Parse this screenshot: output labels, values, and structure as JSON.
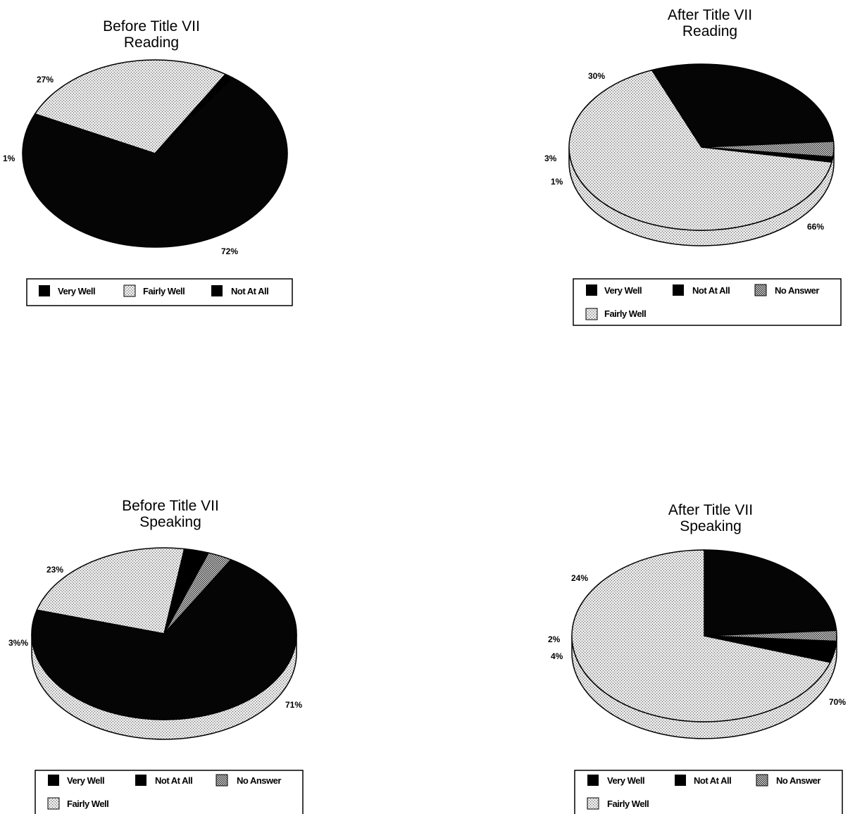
{
  "colors": {
    "very_well": "#000000",
    "fairly_well": "#cfcfcf",
    "not_at_all": "#050505",
    "no_answer": "#bdbdbd",
    "edge": "#000000"
  },
  "chart_data": [
    {
      "type": "pie",
      "title": "Before Title VII",
      "subtitle": "Reading",
      "slices": [
        {
          "label": "Fairly Well",
          "value": 27,
          "text": "27%"
        },
        {
          "label": "Very Well",
          "value": 1,
          "text": "1%"
        },
        {
          "label": "Not At All",
          "value": 72,
          "text": "72%"
        }
      ],
      "legend": [
        "Very Well",
        "Fairly Well",
        "Not At All"
      ]
    },
    {
      "type": "pie",
      "title": "After Title VII",
      "subtitle": "Reading",
      "slices": [
        {
          "label": "Not At All",
          "value": 30,
          "text": "30%"
        },
        {
          "label": "No Answer",
          "value": 3,
          "text": "3%"
        },
        {
          "label": "Very Well",
          "value": 1,
          "text": "1%"
        },
        {
          "label": "Fairly Well",
          "value": 66,
          "text": "66%"
        }
      ],
      "legend": [
        "Very Well",
        "Not At All",
        "No Answer",
        "Fairly Well"
      ]
    },
    {
      "type": "pie",
      "title": "Before Title VII",
      "subtitle": "Speaking",
      "slices": [
        {
          "label": "Fairly Well",
          "value": 23,
          "text": "23%"
        },
        {
          "label": "Very Well",
          "value": 3,
          "text": ""
        },
        {
          "label": "No Answer",
          "value": 3,
          "text": "3%%"
        },
        {
          "label": "Not At All",
          "value": 71,
          "text": "71%"
        }
      ],
      "legend": [
        "Very Well",
        "Not At All",
        "No Answer",
        "Fairly Well"
      ]
    },
    {
      "type": "pie",
      "title": "After Title VII",
      "subtitle": "Speaking",
      "slices": [
        {
          "label": "Not At All",
          "value": 24,
          "text": "24%"
        },
        {
          "label": "No Answer",
          "value": 2,
          "text": "2%"
        },
        {
          "label": "Very Well",
          "value": 4,
          "text": "4%"
        },
        {
          "label": "Fairly Well",
          "value": 70,
          "text": "70%"
        }
      ],
      "legend": [
        "Very Well",
        "Not At All",
        "No Answer",
        "Fairly Well"
      ]
    }
  ]
}
